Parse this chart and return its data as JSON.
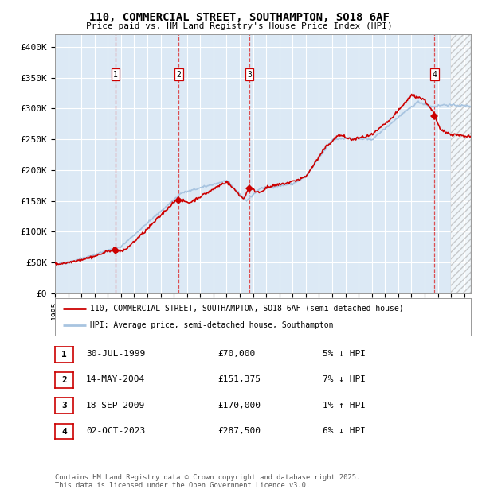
{
  "title_line1": "110, COMMERCIAL STREET, SOUTHAMPTON, SO18 6AF",
  "title_line2": "Price paid vs. HM Land Registry's House Price Index (HPI)",
  "bg_color": "#dce9f5",
  "hpi_color": "#a8c4e0",
  "price_color": "#cc0000",
  "sale_dates": [
    1999.58,
    2004.37,
    2009.72,
    2023.75
  ],
  "sale_prices": [
    70000,
    151375,
    170000,
    287500
  ],
  "sale_labels": [
    "1",
    "2",
    "3",
    "4"
  ],
  "ylabel_ticks": [
    0,
    50000,
    100000,
    150000,
    200000,
    250000,
    300000,
    350000,
    400000
  ],
  "ylabel_labels": [
    "£0",
    "£50K",
    "£100K",
    "£150K",
    "£200K",
    "£250K",
    "£300K",
    "£350K",
    "£400K"
  ],
  "xmin": 1995.0,
  "xmax": 2026.5,
  "ymin": 0,
  "ymax": 420000,
  "hatch_start": 2025.0,
  "legend_line1": "110, COMMERCIAL STREET, SOUTHAMPTON, SO18 6AF (semi-detached house)",
  "legend_line2": "HPI: Average price, semi-detached house, Southampton",
  "table_rows": [
    [
      "1",
      "30-JUL-1999",
      "£70,000",
      "5% ↓ HPI"
    ],
    [
      "2",
      "14-MAY-2004",
      "£151,375",
      "7% ↓ HPI"
    ],
    [
      "3",
      "18-SEP-2009",
      "£170,000",
      "1% ↑ HPI"
    ],
    [
      "4",
      "02-OCT-2023",
      "£287,500",
      "6% ↓ HPI"
    ]
  ],
  "footer": "Contains HM Land Registry data © Crown copyright and database right 2025.\nThis data is licensed under the Open Government Licence v3.0."
}
